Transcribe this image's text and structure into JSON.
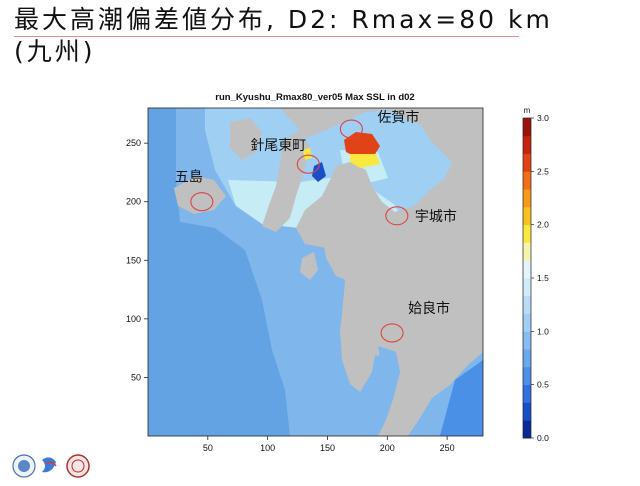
{
  "slide": {
    "title_line1": "最大高潮偏差値分布, D2: Rmax=80 km",
    "title_line2": "(九州)"
  },
  "colors": {
    "land": "#c0c0c0",
    "sea_deep": "#63a3e3",
    "sea_mid": "#7fb6ec",
    "sea_shallow": "#9fcff2",
    "sea_light": "#c6ecf6",
    "circle": "#dd4444",
    "title_underline": "#e88a8a"
  },
  "chart_data": {
    "type": "heatmap",
    "title": "run_Kyushu_Rmax80_ver05 Max SSL in d02",
    "xlabel": "",
    "ylabel": "",
    "xlim": [
      0,
      280
    ],
    "ylim": [
      0,
      280
    ],
    "xticks": [
      50,
      100,
      150,
      200,
      250
    ],
    "yticks": [
      50,
      100,
      150,
      200,
      250
    ],
    "colorbar": {
      "unit": "m",
      "min": 0.0,
      "max": 3.0,
      "ticks": [
        "0.0",
        "0.5",
        "1.0",
        "1.5",
        "2.0",
        "2.5",
        "3.0"
      ],
      "colors": [
        "#0a2a9a",
        "#1a4ec8",
        "#3070e0",
        "#4a90e6",
        "#6aa8ee",
        "#86bcf2",
        "#a0cef4",
        "#b8dcf6",
        "#cfeaf8",
        "#e4f4fa",
        "#f4f4b0",
        "#f8e840",
        "#f8c020",
        "#f49a1c",
        "#f07018",
        "#e04416",
        "#c42410",
        "#9a1408"
      ]
    },
    "annotations": [
      {
        "label": "針尾東町",
        "x": 134,
        "y": 232
      },
      {
        "label": "佐賀市",
        "x": 170,
        "y": 262
      },
      {
        "label": "五島",
        "x": 45,
        "y": 200
      },
      {
        "label": "宇城市",
        "x": 208,
        "y": 188
      },
      {
        "label": "姶良市",
        "x": 204,
        "y": 88
      }
    ]
  }
}
